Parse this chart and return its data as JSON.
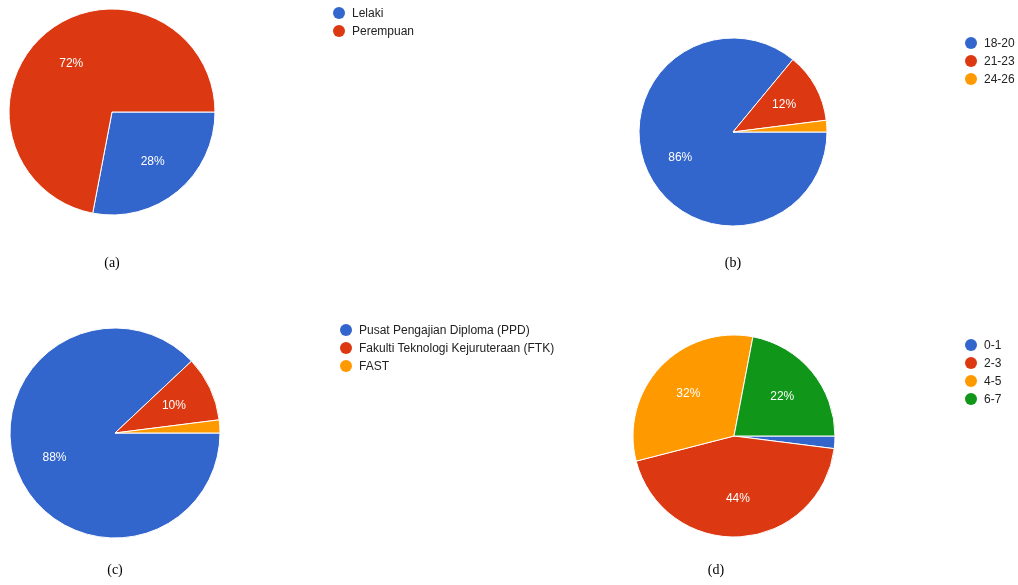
{
  "chart_data": [
    {
      "type": "pie",
      "categories": [
        "Lelaki",
        "Perempuan"
      ],
      "values": [
        28,
        72
      ],
      "colors": [
        "#3366cc",
        "#dc3912"
      ],
      "value_labels": [
        "28%",
        "72%"
      ],
      "legend": "top right",
      "annotations": [
        "(a)"
      ]
    },
    {
      "type": "pie",
      "categories": [
        "18-20",
        "21-23",
        "24-26"
      ],
      "values": [
        86,
        12,
        2
      ],
      "colors": [
        "#3366cc",
        "#dc3912",
        "#ff9900"
      ],
      "value_labels": [
        "86%",
        "12%",
        null
      ],
      "legend": "top right",
      "annotations": [
        "(b)"
      ]
    },
    {
      "type": "pie",
      "categories": [
        "Pusat Pengajian Diploma (PPD)",
        "Fakulti Teknologi Kejuruteraan (FTK)",
        "FAST"
      ],
      "values": [
        88,
        10,
        2
      ],
      "colors": [
        "#3366cc",
        "#dc3912",
        "#ff9900"
      ],
      "value_labels": [
        "88%",
        "10%",
        null
      ],
      "legend": "top right",
      "annotations": [
        "(c)"
      ]
    },
    {
      "type": "pie",
      "categories": [
        "0-1",
        "2-3",
        "4-5",
        "6-7"
      ],
      "values": [
        2,
        44,
        32,
        22
      ],
      "colors": [
        "#3366cc",
        "#dc3912",
        "#ff9900",
        "#109618"
      ],
      "value_labels": [
        null,
        "44%",
        "32%",
        "22%"
      ],
      "legend": "top right",
      "annotations": [
        "(d)"
      ]
    }
  ]
}
